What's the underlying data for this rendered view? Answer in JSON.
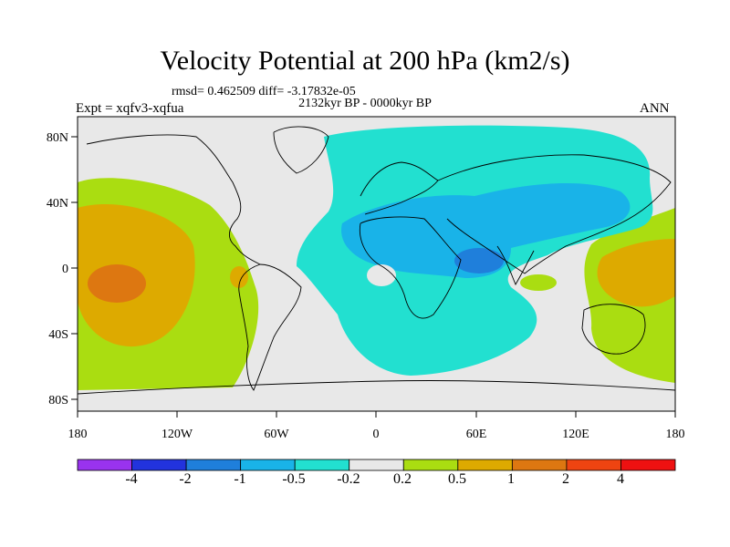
{
  "header": {
    "title": "Velocity Potential at 200 hPa (km2/s)",
    "stats": "rmsd= 0.462509 diff= -3.17832e-05",
    "period": "2132kyr BP - 0000kyr BP",
    "experiment": "Expt = xqfv3-xqfua",
    "season": "ANN"
  },
  "axes": {
    "lat_labels": [
      "80N",
      "40N",
      "0",
      "40S",
      "80S"
    ],
    "lon_labels": [
      "180",
      "120W",
      "60W",
      "0",
      "60E",
      "120E",
      "180"
    ]
  },
  "colorbar": {
    "labels": [
      "-4",
      "-2",
      "-1",
      "-0.5",
      "-0.2",
      "0.2",
      "0.5",
      "1",
      "2",
      "4"
    ],
    "colors": [
      "#9933ee",
      "#2233dd",
      "#1f7fdb",
      "#19b3e8",
      "#22e0d0",
      "#e8e8e8",
      "#aadd11",
      "#ddaa00",
      "#dd7711",
      "#ee4411",
      "#ee1111"
    ]
  },
  "palette": {
    "land_line": "#000000",
    "neutral": "#e8e8e8",
    "cyan": "#22e0d0",
    "lightblue": "#19b3e8",
    "blue": "#1f7fdb",
    "lime": "#aadd11",
    "gold": "#ddaa00",
    "orange": "#dd7711"
  }
}
